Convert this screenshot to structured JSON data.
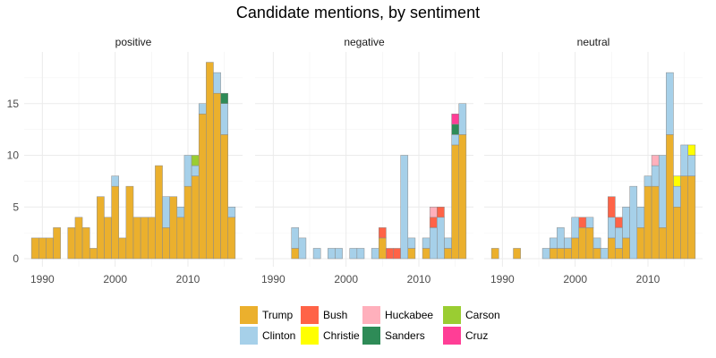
{
  "chart_data": {
    "type": "bar",
    "stacked": true,
    "title": "Candidate mentions, by sentiment",
    "xlabel": "",
    "ylabel": "",
    "xlim": [
      1987.5,
      2017.5
    ],
    "ylim": [
      0,
      19.5
    ],
    "y_ticks": [
      0,
      5,
      10,
      15
    ],
    "x_ticks": [
      1990,
      2000,
      2010
    ],
    "grid": true,
    "legend_position": "bottom",
    "candidates": [
      "Trump",
      "Clinton",
      "Bush",
      "Christie",
      "Huckabee",
      "Sanders",
      "Carson",
      "Cruz"
    ],
    "colors": {
      "Trump": "#EBB02D",
      "Clinton": "#A6D0E9",
      "Bush": "#FF6347",
      "Christie": "#FFFF00",
      "Huckabee": "#FFB0BC",
      "Sanders": "#2E8B57",
      "Carson": "#9ACD32",
      "Cruz": "#FF3E96"
    },
    "panels": [
      {
        "label": "positive",
        "bins": [
          {
            "year": 1989,
            "counts": {
              "Trump": 2
            }
          },
          {
            "year": 1990,
            "counts": {
              "Trump": 2
            }
          },
          {
            "year": 1991,
            "counts": {
              "Trump": 2
            }
          },
          {
            "year": 1992,
            "counts": {
              "Trump": 3
            }
          },
          {
            "year": 1994,
            "counts": {
              "Trump": 3
            }
          },
          {
            "year": 1995,
            "counts": {
              "Trump": 4
            }
          },
          {
            "year": 1996,
            "counts": {
              "Trump": 3
            }
          },
          {
            "year": 1997,
            "counts": {
              "Trump": 1
            }
          },
          {
            "year": 1998,
            "counts": {
              "Trump": 6
            }
          },
          {
            "year": 1999,
            "counts": {
              "Trump": 4
            }
          },
          {
            "year": 2000,
            "counts": {
              "Clinton": 1,
              "Trump": 7
            }
          },
          {
            "year": 2001,
            "counts": {
              "Trump": 2
            }
          },
          {
            "year": 2002,
            "counts": {
              "Trump": 7
            }
          },
          {
            "year": 2003,
            "counts": {
              "Trump": 4
            }
          },
          {
            "year": 2004,
            "counts": {
              "Trump": 4
            }
          },
          {
            "year": 2005,
            "counts": {
              "Trump": 4
            }
          },
          {
            "year": 2006,
            "counts": {
              "Trump": 9
            }
          },
          {
            "year": 2007,
            "counts": {
              "Clinton": 3,
              "Trump": 3
            }
          },
          {
            "year": 2008,
            "counts": {
              "Trump": 6
            }
          },
          {
            "year": 2009,
            "counts": {
              "Clinton": 1,
              "Trump": 4
            }
          },
          {
            "year": 2010,
            "counts": {
              "Clinton": 3,
              "Trump": 7
            }
          },
          {
            "year": 2011,
            "counts": {
              "Clinton": 1,
              "Trump": 8,
              "Carson": 1
            }
          },
          {
            "year": 2012,
            "counts": {
              "Clinton": 1,
              "Trump": 14
            }
          },
          {
            "year": 2013,
            "counts": {
              "Trump": 19
            }
          },
          {
            "year": 2014,
            "counts": {
              "Clinton": 2,
              "Trump": 16
            }
          },
          {
            "year": 2015,
            "counts": {
              "Clinton": 3,
              "Trump": 12,
              "Sanders": 1
            }
          },
          {
            "year": 2016,
            "counts": {
              "Clinton": 1,
              "Trump": 4
            }
          }
        ]
      },
      {
        "label": "negative",
        "bins": [
          {
            "year": 1993,
            "counts": {
              "Clinton": 2,
              "Trump": 1
            }
          },
          {
            "year": 1994,
            "counts": {
              "Clinton": 2
            }
          },
          {
            "year": 1996,
            "counts": {
              "Clinton": 1
            }
          },
          {
            "year": 1998,
            "counts": {
              "Clinton": 1
            }
          },
          {
            "year": 1999,
            "counts": {
              "Clinton": 1
            }
          },
          {
            "year": 2001,
            "counts": {
              "Clinton": 1
            }
          },
          {
            "year": 2002,
            "counts": {
              "Clinton": 1
            }
          },
          {
            "year": 2004,
            "counts": {
              "Clinton": 1
            }
          },
          {
            "year": 2005,
            "counts": {
              "Bush": 1,
              "Trump": 2
            }
          },
          {
            "year": 2006,
            "counts": {
              "Bush": 1
            }
          },
          {
            "year": 2007,
            "counts": {
              "Bush": 1
            }
          },
          {
            "year": 2008,
            "counts": {
              "Clinton": 10
            }
          },
          {
            "year": 2009,
            "counts": {
              "Clinton": 1,
              "Trump": 1
            }
          },
          {
            "year": 2011,
            "counts": {
              "Clinton": 1,
              "Trump": 1
            }
          },
          {
            "year": 2012,
            "counts": {
              "Huckabee": 1,
              "Bush": 1,
              "Clinton": 3
            }
          },
          {
            "year": 2013,
            "counts": {
              "Bush": 1,
              "Clinton": 4
            }
          },
          {
            "year": 2014,
            "counts": {
              "Trump": 1,
              "Clinton": 1
            }
          },
          {
            "year": 2015,
            "counts": {
              "Cruz": 1,
              "Clinton": 1,
              "Trump": 11,
              "Sanders": 1
            }
          },
          {
            "year": 2016,
            "counts": {
              "Clinton": 3,
              "Trump": 12
            }
          }
        ]
      },
      {
        "label": "neutral",
        "bins": [
          {
            "year": 1989,
            "counts": {
              "Trump": 1
            }
          },
          {
            "year": 1992,
            "counts": {
              "Trump": 1
            }
          },
          {
            "year": 1996,
            "counts": {
              "Clinton": 1
            }
          },
          {
            "year": 1997,
            "counts": {
              "Clinton": 1,
              "Trump": 1
            }
          },
          {
            "year": 1998,
            "counts": {
              "Clinton": 2,
              "Trump": 1
            }
          },
          {
            "year": 1999,
            "counts": {
              "Clinton": 1,
              "Trump": 1
            }
          },
          {
            "year": 2000,
            "counts": {
              "Clinton": 2,
              "Trump": 2
            }
          },
          {
            "year": 2001,
            "counts": {
              "Bush": 1,
              "Trump": 3
            }
          },
          {
            "year": 2002,
            "counts": {
              "Clinton": 1,
              "Trump": 3
            }
          },
          {
            "year": 2003,
            "counts": {
              "Clinton": 1,
              "Trump": 1
            }
          },
          {
            "year": 2004,
            "counts": {
              "Clinton": 1
            }
          },
          {
            "year": 2005,
            "counts": {
              "Bush": 2,
              "Clinton": 2,
              "Trump": 2
            }
          },
          {
            "year": 2006,
            "counts": {
              "Bush": 1,
              "Clinton": 2,
              "Trump": 1
            }
          },
          {
            "year": 2007,
            "counts": {
              "Clinton": 3,
              "Trump": 2
            }
          },
          {
            "year": 2008,
            "counts": {
              "Clinton": 7
            }
          },
          {
            "year": 2009,
            "counts": {
              "Clinton": 2,
              "Trump": 3
            }
          },
          {
            "year": 2010,
            "counts": {
              "Clinton": 1,
              "Trump": 7
            }
          },
          {
            "year": 2011,
            "counts": {
              "Huckabee": 1,
              "Clinton": 2,
              "Trump": 7
            }
          },
          {
            "year": 2012,
            "counts": {
              "Clinton": 7,
              "Trump": 3
            }
          },
          {
            "year": 2013,
            "counts": {
              "Clinton": 6,
              "Trump": 12
            }
          },
          {
            "year": 2014,
            "counts": {
              "Christie": 1,
              "Clinton": 2,
              "Trump": 5
            }
          },
          {
            "year": 2015,
            "counts": {
              "Clinton": 3,
              "Trump": 8
            }
          },
          {
            "year": 2016,
            "counts": {
              "Christie": 1,
              "Clinton": 2,
              "Trump": 8
            }
          }
        ]
      }
    ],
    "legend": [
      {
        "name": "Trump",
        "key": "Trump"
      },
      {
        "name": "Bush",
        "key": "Bush"
      },
      {
        "name": "Huckabee",
        "key": "Huckabee"
      },
      {
        "name": "Carson",
        "key": "Carson"
      },
      {
        "name": "Clinton",
        "key": "Clinton"
      },
      {
        "name": "Christie",
        "key": "Christie"
      },
      {
        "name": "Sanders",
        "key": "Sanders"
      },
      {
        "name": "Cruz",
        "key": "Cruz"
      }
    ]
  }
}
